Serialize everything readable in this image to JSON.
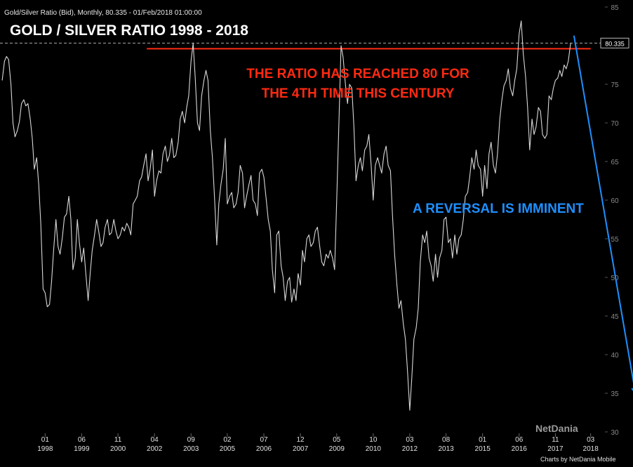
{
  "header": {
    "caption": "Gold/Silver Ratio (Bid), Monthly, 80.335 - 01/Feb/2018 01:00:00"
  },
  "chart_data": {
    "type": "line",
    "title": "GOLD / SILVER RATIO 1998 - 2018",
    "xlabel": "",
    "ylabel": "",
    "ylim": [
      30,
      85
    ],
    "grid": false,
    "y_ticks": [
      30,
      35,
      40,
      45,
      50,
      55,
      60,
      65,
      70,
      75,
      80,
      85
    ],
    "x_ticks": [
      {
        "month": "01",
        "year": "1998",
        "x": 1998.0
      },
      {
        "month": "06",
        "year": "1999",
        "x": 1999.42
      },
      {
        "month": "11",
        "year": "2000",
        "x": 2000.83
      },
      {
        "month": "04",
        "year": "2002",
        "x": 2002.25
      },
      {
        "month": "09",
        "year": "2003",
        "x": 2003.67
      },
      {
        "month": "02",
        "year": "2005",
        "x": 2005.08
      },
      {
        "month": "07",
        "year": "2006",
        "x": 2006.5
      },
      {
        "month": "12",
        "year": "2007",
        "x": 2007.92
      },
      {
        "month": "05",
        "year": "2009",
        "x": 2009.33
      },
      {
        "month": "10",
        "year": "2010",
        "x": 2010.75
      },
      {
        "month": "03",
        "year": "2012",
        "x": 2012.17
      },
      {
        "month": "08",
        "year": "2013",
        "x": 2013.58
      },
      {
        "month": "01",
        "year": "2015",
        "x": 2015.0
      },
      {
        "month": "06",
        "year": "2016",
        "x": 2016.42
      },
      {
        "month": "11",
        "year": "2017",
        "x": 2017.83
      },
      {
        "month": "03",
        "year": "2018",
        "x": 2019.2
      }
    ],
    "x_range": [
      1996.3,
      2019.7
    ],
    "last_value": "80.335",
    "series": [
      {
        "color": "#d8d8d8",
        "points": [
          [
            1996.33,
            75.5
          ],
          [
            1996.42,
            78.0
          ],
          [
            1996.5,
            78.6
          ],
          [
            1996.58,
            78.2
          ],
          [
            1996.67,
            75.0
          ],
          [
            1996.75,
            70.0
          ],
          [
            1996.83,
            68.2
          ],
          [
            1996.92,
            69.0
          ],
          [
            1997.0,
            70.2
          ],
          [
            1997.08,
            72.5
          ],
          [
            1997.17,
            73.0
          ],
          [
            1997.25,
            72.2
          ],
          [
            1997.33,
            72.5
          ],
          [
            1997.42,
            70.5
          ],
          [
            1997.5,
            68.0
          ],
          [
            1997.58,
            64.0
          ],
          [
            1997.67,
            65.5
          ],
          [
            1997.75,
            62.0
          ],
          [
            1997.83,
            57.0
          ],
          [
            1997.92,
            48.5
          ],
          [
            1998.0,
            48.0
          ],
          [
            1998.08,
            46.2
          ],
          [
            1998.17,
            46.5
          ],
          [
            1998.25,
            49.5
          ],
          [
            1998.33,
            53.5
          ],
          [
            1998.42,
            57.5
          ],
          [
            1998.5,
            54.0
          ],
          [
            1998.58,
            53.0
          ],
          [
            1998.67,
            55.2
          ],
          [
            1998.75,
            57.8
          ],
          [
            1998.83,
            58.2
          ],
          [
            1998.92,
            60.5
          ],
          [
            1999.0,
            57.5
          ],
          [
            1999.08,
            51.0
          ],
          [
            1999.17,
            52.5
          ],
          [
            1999.25,
            57.5
          ],
          [
            1999.33,
            54.5
          ],
          [
            1999.42,
            52.0
          ],
          [
            1999.5,
            53.8
          ],
          [
            1999.58,
            50.5
          ],
          [
            1999.67,
            47.0
          ],
          [
            1999.75,
            50.5
          ],
          [
            1999.83,
            53.5
          ],
          [
            1999.92,
            55.5
          ],
          [
            2000.0,
            57.5
          ],
          [
            2000.08,
            56.0
          ],
          [
            2000.17,
            54.0
          ],
          [
            2000.25,
            54.5
          ],
          [
            2000.33,
            56.5
          ],
          [
            2000.42,
            57.5
          ],
          [
            2000.5,
            55.5
          ],
          [
            2000.58,
            55.8
          ],
          [
            2000.67,
            57.5
          ],
          [
            2000.75,
            56.0
          ],
          [
            2000.83,
            55.0
          ],
          [
            2000.92,
            55.5
          ],
          [
            2001.0,
            56.5
          ],
          [
            2001.08,
            56.0
          ],
          [
            2001.17,
            57.0
          ],
          [
            2001.25,
            56.5
          ],
          [
            2001.33,
            55.5
          ],
          [
            2001.42,
            59.5
          ],
          [
            2001.5,
            60.0
          ],
          [
            2001.58,
            60.5
          ],
          [
            2001.67,
            62.5
          ],
          [
            2001.75,
            63.0
          ],
          [
            2001.83,
            64.5
          ],
          [
            2001.92,
            66.0
          ],
          [
            2002.0,
            62.5
          ],
          [
            2002.08,
            64.0
          ],
          [
            2002.17,
            66.5
          ],
          [
            2002.25,
            60.5
          ],
          [
            2002.33,
            62.5
          ],
          [
            2002.42,
            63.8
          ],
          [
            2002.5,
            63.5
          ],
          [
            2002.58,
            66.0
          ],
          [
            2002.67,
            67.0
          ],
          [
            2002.75,
            65.0
          ],
          [
            2002.83,
            65.8
          ],
          [
            2002.92,
            68.0
          ],
          [
            2003.0,
            65.5
          ],
          [
            2003.08,
            65.8
          ],
          [
            2003.17,
            67.5
          ],
          [
            2003.25,
            70.5
          ],
          [
            2003.33,
            71.5
          ],
          [
            2003.42,
            70.0
          ],
          [
            2003.5,
            72.0
          ],
          [
            2003.58,
            73.5
          ],
          [
            2003.67,
            78.0
          ],
          [
            2003.75,
            80.3
          ],
          [
            2003.83,
            76.0
          ],
          [
            2003.92,
            70.0
          ],
          [
            2004.0,
            69.0
          ],
          [
            2004.08,
            73.5
          ],
          [
            2004.17,
            75.5
          ],
          [
            2004.25,
            76.8
          ],
          [
            2004.33,
            75.5
          ],
          [
            2004.42,
            69.0
          ],
          [
            2004.5,
            65.5
          ],
          [
            2004.58,
            60.5
          ],
          [
            2004.67,
            54.2
          ],
          [
            2004.75,
            59.5
          ],
          [
            2004.83,
            62.0
          ],
          [
            2004.92,
            64.0
          ],
          [
            2005.0,
            68.0
          ],
          [
            2005.08,
            59.5
          ],
          [
            2005.17,
            60.5
          ],
          [
            2005.25,
            61.0
          ],
          [
            2005.33,
            59.0
          ],
          [
            2005.42,
            59.5
          ],
          [
            2005.5,
            61.0
          ],
          [
            2005.58,
            64.5
          ],
          [
            2005.67,
            63.5
          ],
          [
            2005.75,
            59.0
          ],
          [
            2005.83,
            60.5
          ],
          [
            2005.92,
            62.0
          ],
          [
            2006.0,
            63.2
          ],
          [
            2006.08,
            60.0
          ],
          [
            2006.17,
            59.5
          ],
          [
            2006.25,
            58.0
          ],
          [
            2006.33,
            63.5
          ],
          [
            2006.42,
            64.0
          ],
          [
            2006.5,
            63.0
          ],
          [
            2006.58,
            60.5
          ],
          [
            2006.67,
            57.5
          ],
          [
            2006.75,
            56.0
          ],
          [
            2006.83,
            51.0
          ],
          [
            2006.92,
            48.0
          ],
          [
            2007.0,
            55.5
          ],
          [
            2007.08,
            56.0
          ],
          [
            2007.17,
            51.5
          ],
          [
            2007.25,
            50.0
          ],
          [
            2007.33,
            47.0
          ],
          [
            2007.42,
            49.5
          ],
          [
            2007.5,
            50.0
          ],
          [
            2007.58,
            46.8
          ],
          [
            2007.67,
            48.5
          ],
          [
            2007.75,
            47.0
          ],
          [
            2007.83,
            50.5
          ],
          [
            2007.92,
            49.0
          ],
          [
            2008.0,
            53.5
          ],
          [
            2008.08,
            52.0
          ],
          [
            2008.17,
            55.0
          ],
          [
            2008.25,
            55.5
          ],
          [
            2008.33,
            54.0
          ],
          [
            2008.42,
            54.5
          ],
          [
            2008.5,
            56.0
          ],
          [
            2008.58,
            56.5
          ],
          [
            2008.67,
            54.0
          ],
          [
            2008.75,
            52.0
          ],
          [
            2008.83,
            51.5
          ],
          [
            2008.92,
            53.0
          ],
          [
            2009.0,
            52.5
          ],
          [
            2009.08,
            53.5
          ],
          [
            2009.17,
            52.5
          ],
          [
            2009.25,
            51.0
          ],
          [
            2009.33,
            60.0
          ],
          [
            2009.42,
            70.5
          ],
          [
            2009.5,
            80.0
          ],
          [
            2009.58,
            78.5
          ],
          [
            2009.67,
            75.0
          ],
          [
            2009.75,
            72.5
          ],
          [
            2009.83,
            75.0
          ],
          [
            2009.92,
            74.5
          ],
          [
            2010.0,
            69.5
          ],
          [
            2010.08,
            62.5
          ],
          [
            2010.17,
            64.5
          ],
          [
            2010.25,
            65.5
          ],
          [
            2010.33,
            63.8
          ],
          [
            2010.42,
            66.5
          ],
          [
            2010.5,
            67.0
          ],
          [
            2010.58,
            68.5
          ],
          [
            2010.67,
            64.5
          ],
          [
            2010.75,
            60.0
          ],
          [
            2010.83,
            64.5
          ],
          [
            2010.92,
            65.5
          ],
          [
            2011.0,
            64.5
          ],
          [
            2011.08,
            63.5
          ],
          [
            2011.17,
            66.0
          ],
          [
            2011.25,
            67.0
          ],
          [
            2011.33,
            64.5
          ],
          [
            2011.42,
            63.8
          ],
          [
            2011.5,
            58.0
          ],
          [
            2011.58,
            53.0
          ],
          [
            2011.67,
            49.0
          ],
          [
            2011.75,
            46.0
          ],
          [
            2011.83,
            47.0
          ],
          [
            2011.92,
            44.0
          ],
          [
            2012.0,
            42.0
          ],
          [
            2012.08,
            38.0
          ],
          [
            2012.17,
            32.8
          ],
          [
            2012.25,
            37.0
          ],
          [
            2012.33,
            42.0
          ],
          [
            2012.42,
            43.5
          ],
          [
            2012.5,
            46.0
          ],
          [
            2012.58,
            52.0
          ],
          [
            2012.67,
            55.5
          ],
          [
            2012.75,
            54.5
          ],
          [
            2012.83,
            56.0
          ],
          [
            2012.92,
            52.5
          ],
          [
            2013.0,
            51.5
          ],
          [
            2013.08,
            49.5
          ],
          [
            2013.17,
            53.0
          ],
          [
            2013.25,
            50.0
          ],
          [
            2013.33,
            52.5
          ],
          [
            2013.42,
            53.5
          ],
          [
            2013.5,
            57.5
          ],
          [
            2013.58,
            57.8
          ],
          [
            2013.67,
            54.5
          ],
          [
            2013.75,
            55.0
          ],
          [
            2013.83,
            52.5
          ],
          [
            2013.92,
            55.5
          ],
          [
            2014.0,
            53.0
          ],
          [
            2014.08,
            55.0
          ],
          [
            2014.17,
            55.5
          ],
          [
            2014.25,
            57.5
          ],
          [
            2014.33,
            60.5
          ],
          [
            2014.42,
            61.0
          ],
          [
            2014.5,
            63.0
          ],
          [
            2014.58,
            65.5
          ],
          [
            2014.67,
            64.0
          ],
          [
            2014.75,
            66.5
          ],
          [
            2014.83,
            64.5
          ],
          [
            2014.92,
            64.0
          ],
          [
            2015.0,
            60.5
          ],
          [
            2015.08,
            64.5
          ],
          [
            2015.17,
            61.5
          ],
          [
            2015.25,
            66.0
          ],
          [
            2015.33,
            67.5
          ],
          [
            2015.42,
            64.5
          ],
          [
            2015.5,
            63.5
          ],
          [
            2015.58,
            66.0
          ],
          [
            2015.67,
            70.5
          ],
          [
            2015.75,
            73.0
          ],
          [
            2015.83,
            74.8
          ],
          [
            2015.92,
            75.5
          ],
          [
            2016.0,
            77.0
          ],
          [
            2016.08,
            74.5
          ],
          [
            2016.17,
            73.5
          ],
          [
            2016.25,
            75.5
          ],
          [
            2016.33,
            77.0
          ],
          [
            2016.42,
            81.5
          ],
          [
            2016.5,
            83.2
          ],
          [
            2016.58,
            79.0
          ],
          [
            2016.67,
            76.0
          ],
          [
            2016.75,
            72.0
          ],
          [
            2016.83,
            66.5
          ],
          [
            2016.92,
            70.5
          ],
          [
            2017.0,
            68.5
          ],
          [
            2017.08,
            69.5
          ],
          [
            2017.17,
            72.0
          ],
          [
            2017.25,
            71.5
          ],
          [
            2017.33,
            68.5
          ],
          [
            2017.42,
            68.0
          ],
          [
            2017.5,
            68.5
          ],
          [
            2017.58,
            73.5
          ],
          [
            2017.67,
            73.0
          ],
          [
            2017.75,
            74.5
          ],
          [
            2017.83,
            75.5
          ],
          [
            2017.92,
            75.8
          ],
          [
            2018.0,
            76.8
          ],
          [
            2018.08,
            76.0
          ],
          [
            2018.17,
            77.5
          ],
          [
            2018.25,
            77.0
          ],
          [
            2018.33,
            78.0
          ],
          [
            2018.42,
            80.3
          ]
        ]
      }
    ],
    "annotations": {
      "resistance_line": {
        "color": "#ff2a12",
        "y": 79.6,
        "x_start": 2001.95,
        "x_end": 2019.2
      },
      "reversal_arrow": {
        "color": "#1e90ff",
        "from": [
          2018.55,
          81.3
        ],
        "to": [
          2020.95,
          34.8
        ]
      },
      "last_price_line": {
        "color": "#aaaaaa",
        "y": 80.335
      }
    }
  },
  "annotations_text": {
    "ratio_note_line1": "THE RATIO HAS REACHED 80 FOR",
    "ratio_note_line2": "THE 4TH TIME THIS CENTURY",
    "reversal_note": "A REVERSAL IS IMMINENT"
  },
  "branding": {
    "logo_text": "NetDania",
    "credit": "Charts by NetDania Mobile"
  }
}
